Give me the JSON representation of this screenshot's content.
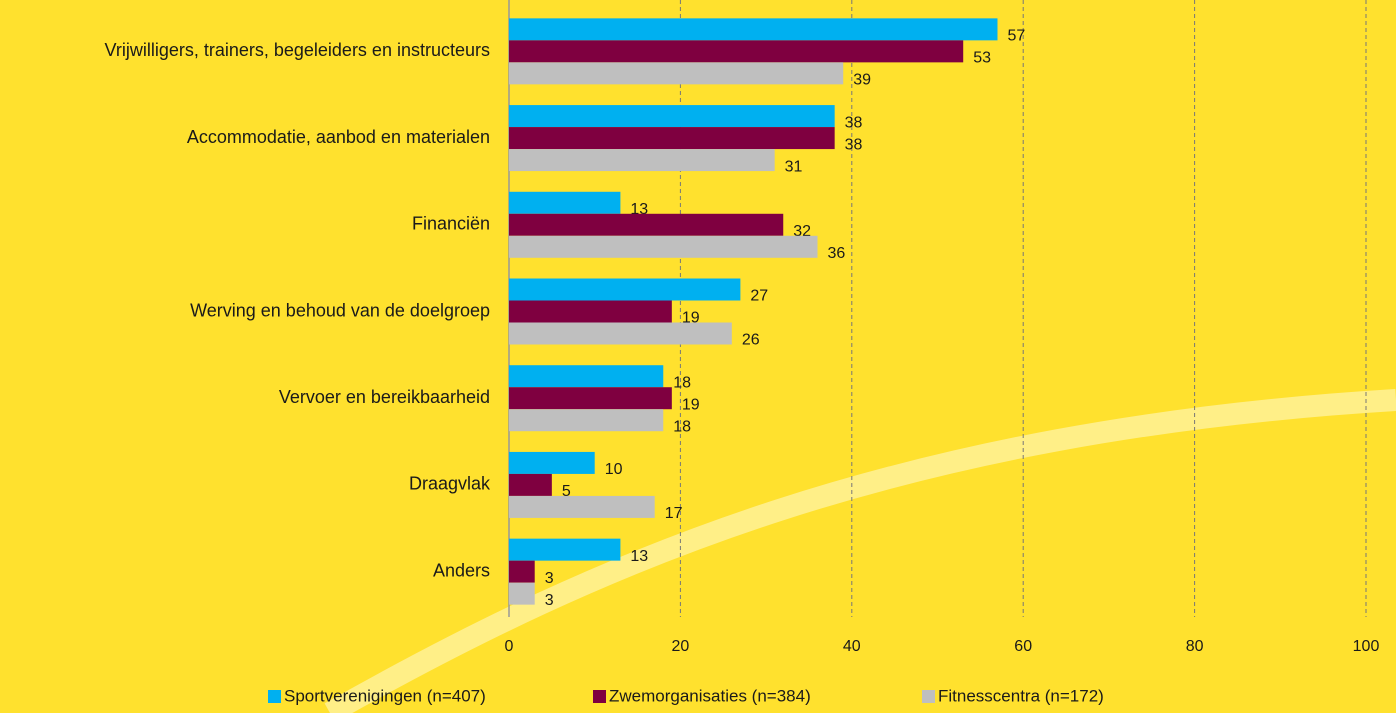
{
  "chart_data": {
    "type": "bar",
    "orientation": "horizontal",
    "categories": [
      "Vrijwilligers, trainers, begeleiders en instructeurs",
      "Accommodatie, aanbod en materialen",
      "Financiën",
      "Werving en behoud van de doelgroep",
      "Vervoer en bereikbaarheid",
      "Draagvlak",
      "Anders"
    ],
    "series": [
      {
        "name": "Sportverenigingen (n=407)",
        "color": "#00b0f0",
        "values": [
          57,
          38,
          13,
          27,
          18,
          10,
          13
        ]
      },
      {
        "name": "Zwemorganisaties (n=384)",
        "color": "#7f0040",
        "values": [
          53,
          38,
          32,
          19,
          19,
          5,
          3
        ]
      },
      {
        "name": "Fitnesscentra (n=172)",
        "color": "#bfbfbf",
        "values": [
          39,
          31,
          36,
          26,
          18,
          17,
          3
        ]
      }
    ],
    "xlim": [
      0,
      100
    ],
    "xticks": [
      0,
      20,
      40,
      60,
      80,
      100
    ],
    "grid": true,
    "legend": "bottom"
  }
}
